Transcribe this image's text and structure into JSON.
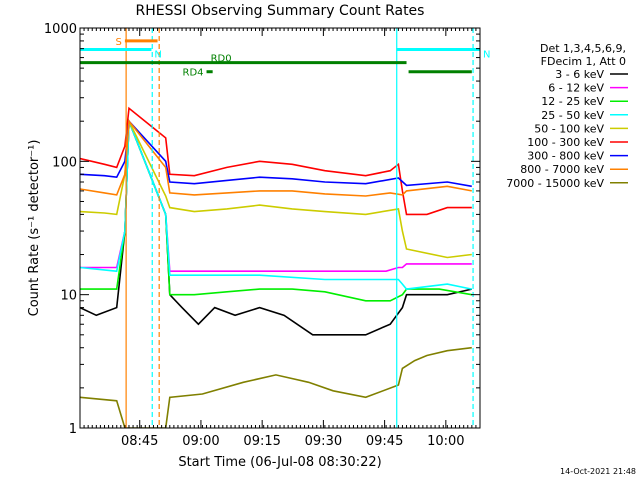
{
  "chart_data": {
    "type": "line",
    "title": "RHESSI Observing Summary Count Rates",
    "xlabel": "Start Time (06-Jul-08 08:30:22)",
    "ylabel": "Count Rate (s⁻¹ detector⁻¹)",
    "yscale": "log",
    "ylim": [
      1,
      1000
    ],
    "xlim_minutes": [
      0,
      98
    ],
    "x_ticks": [
      {
        "m": 14.63,
        "label": "08:45"
      },
      {
        "m": 29.63,
        "label": "09:00"
      },
      {
        "m": 44.63,
        "label": "09:15"
      },
      {
        "m": 59.63,
        "label": "09:30"
      },
      {
        "m": 74.63,
        "label": "09:45"
      },
      {
        "m": 89.63,
        "label": "10:00"
      }
    ],
    "y_ticks": [
      {
        "v": 1,
        "label": "1"
      },
      {
        "v": 10,
        "label": "10"
      },
      {
        "v": 100,
        "label": "100"
      },
      {
        "v": 1000,
        "label": "1000"
      }
    ],
    "legend_header": [
      "Det 1,3,4,5,6,9,",
      "FDecim 1, Att 0"
    ],
    "legend_position": "right",
    "series": [
      {
        "name": "3 - 6 keV",
        "color": "#000000",
        "points": [
          [
            0,
            8
          ],
          [
            4,
            7
          ],
          [
            9,
            8
          ],
          [
            11,
            30
          ],
          [
            12,
            200
          ],
          [
            21,
            40
          ],
          [
            22,
            10
          ],
          [
            25,
            8
          ],
          [
            29,
            6
          ],
          [
            33,
            8
          ],
          [
            38,
            7
          ],
          [
            44,
            8
          ],
          [
            50,
            7
          ],
          [
            57,
            5
          ],
          [
            64,
            5
          ],
          [
            70,
            5
          ],
          [
            76,
            6
          ],
          [
            79,
            8
          ],
          [
            80,
            10
          ],
          [
            85,
            10
          ],
          [
            90,
            10
          ],
          [
            96,
            11
          ]
        ]
      },
      {
        "name": "6 - 12 keV",
        "color": "#ff00ff",
        "points": [
          [
            0,
            16
          ],
          [
            9,
            16
          ],
          [
            11,
            30
          ],
          [
            12,
            200
          ],
          [
            21,
            40
          ],
          [
            22,
            15
          ],
          [
            30,
            15
          ],
          [
            44,
            15
          ],
          [
            60,
            15
          ],
          [
            75,
            15
          ],
          [
            78,
            16
          ],
          [
            79,
            16
          ],
          [
            80,
            17
          ],
          [
            90,
            17
          ],
          [
            96,
            17
          ]
        ]
      },
      {
        "name": "12 - 25 keV",
        "color": "#00ee00",
        "points": [
          [
            0,
            11
          ],
          [
            6,
            11
          ],
          [
            9,
            11
          ],
          [
            11,
            30
          ],
          [
            12,
            200
          ],
          [
            21,
            40
          ],
          [
            22,
            10
          ],
          [
            28,
            10
          ],
          [
            36,
            10.5
          ],
          [
            44,
            11
          ],
          [
            52,
            11
          ],
          [
            60,
            10.5
          ],
          [
            70,
            9
          ],
          [
            76,
            9
          ],
          [
            79,
            10
          ],
          [
            80,
            11
          ],
          [
            88,
            11
          ],
          [
            96,
            10
          ]
        ]
      },
      {
        "name": "25 - 50 keV",
        "color": "#00ffff",
        "points": [
          [
            0,
            16
          ],
          [
            9,
            15
          ],
          [
            11,
            30
          ],
          [
            12,
            200
          ],
          [
            21,
            40
          ],
          [
            22,
            14
          ],
          [
            30,
            14
          ],
          [
            44,
            14
          ],
          [
            60,
            13
          ],
          [
            75,
            13
          ],
          [
            78,
            13
          ],
          [
            79,
            12
          ],
          [
            80,
            11
          ],
          [
            90,
            12
          ],
          [
            96,
            11
          ]
        ]
      },
      {
        "name": "50 - 100 keV",
        "color": "#cccc00",
        "points": [
          [
            0,
            42
          ],
          [
            6,
            41
          ],
          [
            9,
            40
          ],
          [
            11,
            80
          ],
          [
            12,
            200
          ],
          [
            21,
            55
          ],
          [
            22,
            45
          ],
          [
            28,
            42
          ],
          [
            36,
            44
          ],
          [
            44,
            47
          ],
          [
            52,
            44
          ],
          [
            60,
            42
          ],
          [
            70,
            40
          ],
          [
            78,
            44
          ],
          [
            79,
            30
          ],
          [
            80,
            22
          ],
          [
            90,
            19
          ],
          [
            96,
            20
          ]
        ]
      },
      {
        "name": "100 - 300 keV",
        "color": "#ff0000",
        "points": [
          [
            0,
            105
          ],
          [
            6,
            95
          ],
          [
            9,
            90
          ],
          [
            11,
            130
          ],
          [
            12,
            250
          ],
          [
            21,
            150
          ],
          [
            22,
            80
          ],
          [
            28,
            78
          ],
          [
            36,
            90
          ],
          [
            44,
            100
          ],
          [
            52,
            95
          ],
          [
            60,
            85
          ],
          [
            70,
            78
          ],
          [
            76,
            85
          ],
          [
            78,
            95
          ],
          [
            79,
            60
          ],
          [
            80,
            40
          ],
          [
            85,
            40
          ],
          [
            90,
            45
          ],
          [
            96,
            45
          ]
        ]
      },
      {
        "name": "300 - 800 keV",
        "color": "#0000ff",
        "points": [
          [
            0,
            80
          ],
          [
            6,
            78
          ],
          [
            9,
            76
          ],
          [
            11,
            100
          ],
          [
            12,
            200
          ],
          [
            21,
            100
          ],
          [
            22,
            70
          ],
          [
            28,
            68
          ],
          [
            36,
            72
          ],
          [
            44,
            76
          ],
          [
            52,
            74
          ],
          [
            60,
            70
          ],
          [
            70,
            68
          ],
          [
            78,
            75
          ],
          [
            80,
            66
          ],
          [
            90,
            70
          ],
          [
            96,
            65
          ]
        ]
      },
      {
        "name": "800 - 7000 keV",
        "color": "#ff8000",
        "points": [
          [
            0,
            62
          ],
          [
            6,
            58
          ],
          [
            9,
            56
          ],
          [
            11,
            80
          ],
          [
            12,
            200
          ],
          [
            21,
            90
          ],
          [
            22,
            58
          ],
          [
            28,
            56
          ],
          [
            36,
            58
          ],
          [
            44,
            60
          ],
          [
            52,
            60
          ],
          [
            60,
            57
          ],
          [
            70,
            55
          ],
          [
            76,
            58
          ],
          [
            79,
            56
          ],
          [
            80,
            60
          ],
          [
            90,
            65
          ],
          [
            96,
            60
          ]
        ]
      },
      {
        "name": "7000 - 15000 keV",
        "color": "#808000",
        "points": [
          [
            0,
            1.7
          ],
          [
            9,
            1.6
          ],
          [
            11,
            1
          ],
          [
            12,
            1
          ],
          [
            21,
            1
          ],
          [
            22,
            1.7
          ],
          [
            30,
            1.8
          ],
          [
            40,
            2.2
          ],
          [
            48,
            2.5
          ],
          [
            56,
            2.2
          ],
          [
            62,
            1.9
          ],
          [
            70,
            1.7
          ],
          [
            78,
            2.1
          ],
          [
            79,
            2.8
          ],
          [
            82,
            3.2
          ],
          [
            85,
            3.5
          ],
          [
            90,
            3.8
          ],
          [
            96,
            4
          ]
        ]
      }
    ],
    "flags": [
      {
        "label": "S",
        "color": "#ff8000",
        "m0": 11,
        "m1": 19,
        "y": 800
      },
      {
        "label": "N",
        "color": "#00ffff",
        "m0": 0,
        "m1": 17.5,
        "y": 690
      },
      {
        "label": "N",
        "color": "#00ffff",
        "m0": 77.5,
        "m1": 98,
        "y": 690
      },
      {
        "label": "RD0",
        "color": "#008000",
        "m0": 0,
        "m1": 80,
        "y": 550
      },
      {
        "label": "",
        "color": "#008000",
        "m0": 80.5,
        "m1": 96,
        "y": 470
      },
      {
        "label": "RD4",
        "color": "#008000",
        "m0": 31,
        "m1": 32.5,
        "y": 470
      }
    ],
    "vertical_lines": [
      {
        "m": 11.3,
        "color": "#ff8000",
        "style": "solid"
      },
      {
        "m": 19.4,
        "color": "#ff8000",
        "style": "dashed"
      },
      {
        "m": 17.7,
        "color": "#00ffff",
        "style": "dashed"
      },
      {
        "m": 77.6,
        "color": "#00ffff",
        "style": "solid"
      },
      {
        "m": 96.3,
        "color": "#00ffff",
        "style": "dashed"
      }
    ]
  },
  "footer": {
    "timestamp": "14-Oct-2021 21:48"
  }
}
